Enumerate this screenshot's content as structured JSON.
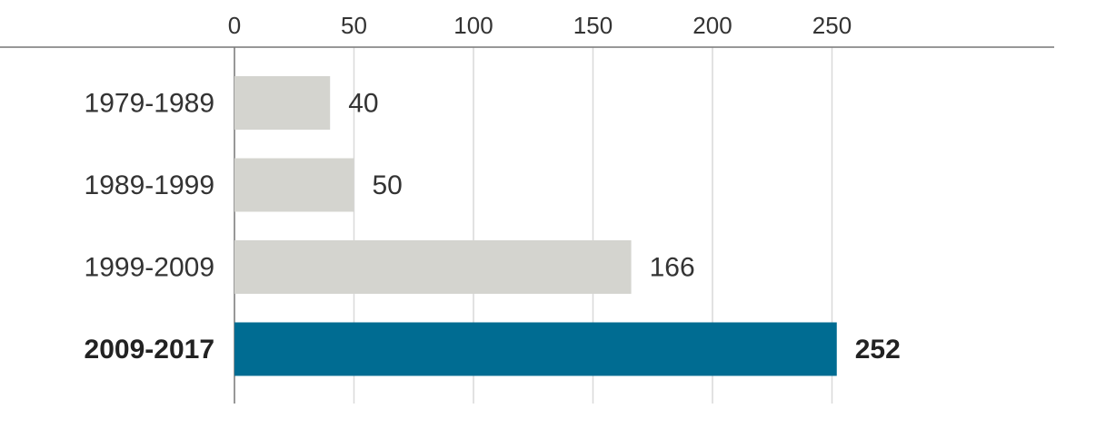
{
  "chart_data": {
    "type": "bar",
    "orientation": "horizontal",
    "title": "",
    "xlabel": "",
    "ylabel": "",
    "categories": [
      "1979-1989",
      "1989-1999",
      "1999-2009",
      "2009-2017"
    ],
    "values": [
      40,
      50,
      166,
      252
    ],
    "value_labels": [
      "40",
      "50",
      "166",
      "252"
    ],
    "highlighted_category": "2009-2017",
    "xlim": [
      0,
      250
    ],
    "x_ticks": [
      0,
      50,
      100,
      150,
      200,
      250
    ],
    "x_tick_labels": [
      "0",
      "50",
      "100",
      "150",
      "200",
      "250"
    ],
    "x_axis_position": "top",
    "grid": true,
    "legend": "none"
  },
  "colors": {
    "bar_default": "#d4d4cf",
    "bar_highlight": "#006c92",
    "gridline": "#d9d9d9",
    "axis_line": "#777777",
    "text": "#333333"
  }
}
